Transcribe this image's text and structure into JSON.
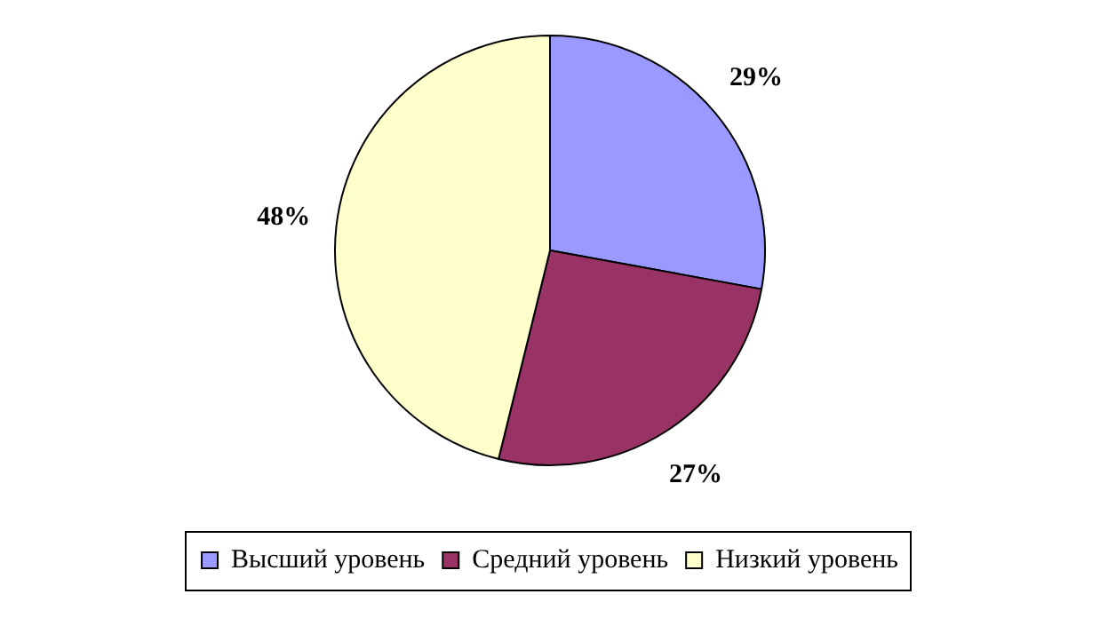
{
  "chart_data": {
    "type": "pie",
    "categories": [
      "Высший уровень",
      "Средний уровень",
      "Низкий уровень"
    ],
    "values": [
      29,
      27,
      48
    ],
    "colors": [
      "#9999ff",
      "#993366",
      "#ffffcc"
    ],
    "value_labels": [
      "29%",
      "27%",
      "48%"
    ],
    "legend": "bottom"
  }
}
